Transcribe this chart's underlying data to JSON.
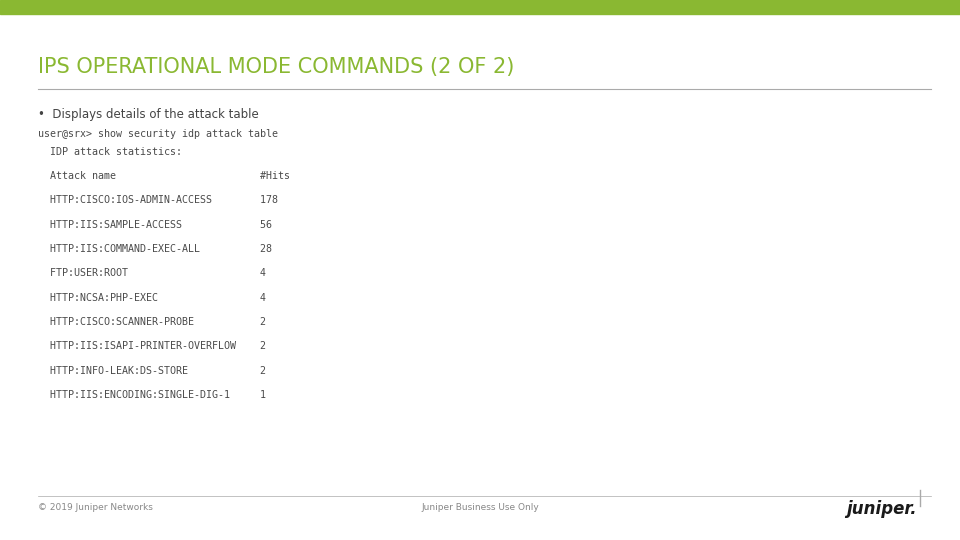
{
  "title": "IPS OPERATIONAL MODE COMMANDS (2 OF 2)",
  "title_color": "#8ab832",
  "top_bar_color": "#8ab832",
  "top_bar_height": 0.026,
  "background_color": "#ffffff",
  "separator_color": "#aaaaaa",
  "bullet_text": "Displays details of the attack table",
  "bullet_color": "#444444",
  "command_line": "user@srx> show security idp attack table",
  "code_lines": [
    "  IDP attack statistics:",
    "",
    "  Attack name                        #Hits",
    "",
    "  HTTP:CISCO:IOS-ADMIN-ACCESS        178",
    "",
    "  HTTP:IIS:SAMPLE-ACCESS             56",
    "",
    "  HTTP:IIS:COMMAND-EXEC-ALL          28",
    "",
    "  FTP:USER:ROOT                      4",
    "",
    "  HTTP:NCSA:PHP-EXEC                 4",
    "",
    "  HTTP:CISCO:SCANNER-PROBE           2",
    "",
    "  HTTP:IIS:ISAPI-PRINTER-OVERFLOW    2",
    "",
    "  HTTP:INFO-LEAK:DS-STORE            2",
    "",
    "  HTTP:IIS:ENCODING:SINGLE-DIG-1     1"
  ],
  "code_color": "#4a4a4a",
  "code_font_size": 7.2,
  "title_font_size": 15,
  "bullet_font_size": 8.5,
  "footer_text_left": "© 2019 Juniper Networks",
  "footer_text_center": "Juniper Business Use Only",
  "footer_color": "#888888",
  "footer_font_size": 6.5,
  "juniper_text": "juniper.",
  "juniper_font_size": 12
}
